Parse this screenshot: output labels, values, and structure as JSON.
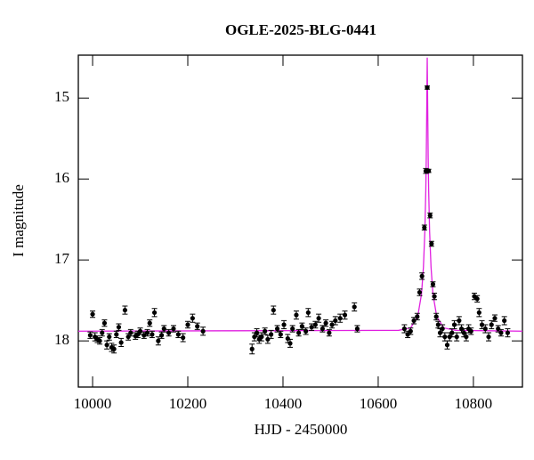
{
  "chart_data": {
    "type": "scatter",
    "title": "OGLE-2025-BLG-0441",
    "xlabel": "HJD - 2450000",
    "ylabel": "I magnitude",
    "xlim": [
      9970,
      10903
    ],
    "xticks": [
      10000,
      10200,
      10400,
      10600,
      10800
    ],
    "ylim": [
      14.47,
      18.57
    ],
    "yticks": [
      15,
      16,
      17,
      18
    ],
    "y_inverted": true,
    "points": {
      "color": "#000000",
      "x": [
        9995,
        10000,
        10005,
        10010,
        10015,
        10020,
        10025,
        10030,
        10035,
        10040,
        10045,
        10050,
        10055,
        10060,
        10068,
        10075,
        10080,
        10090,
        10095,
        10100,
        10108,
        10115,
        10120,
        10125,
        10130,
        10138,
        10145,
        10150,
        10160,
        10170,
        10180,
        10190,
        10200,
        10210,
        10220,
        10232,
        10335,
        10340,
        10345,
        10350,
        10355,
        10362,
        10368,
        10375,
        10380,
        10388,
        10395,
        10402,
        10410,
        10415,
        10420,
        10428,
        10433,
        10440,
        10448,
        10453,
        10460,
        10468,
        10475,
        10483,
        10490,
        10497,
        10503,
        10510,
        10520,
        10530,
        10550,
        10556,
        10655,
        10662,
        10668,
        10675,
        10682,
        10687,
        10692,
        10697,
        10700,
        10703,
        10706,
        10709,
        10712,
        10715,
        10718,
        10722,
        10726,
        10730,
        10735,
        10740,
        10745,
        10750,
        10755,
        10760,
        10765,
        10770,
        10775,
        10780,
        10785,
        10790,
        10795,
        10802,
        10808,
        10812,
        10818,
        10825,
        10832,
        10838,
        10845,
        10852,
        10858,
        10865,
        10872
      ],
      "values": [
        17.93,
        17.67,
        17.95,
        17.98,
        18.0,
        17.9,
        17.78,
        18.05,
        17.95,
        18.08,
        18.1,
        17.92,
        17.83,
        18.02,
        17.62,
        17.95,
        17.9,
        17.94,
        17.92,
        17.88,
        17.93,
        17.9,
        17.78,
        17.92,
        17.65,
        18.0,
        17.93,
        17.85,
        17.9,
        17.85,
        17.92,
        17.96,
        17.8,
        17.72,
        17.82,
        17.88,
        18.1,
        17.95,
        17.9,
        17.98,
        17.95,
        17.88,
        17.98,
        17.92,
        17.62,
        17.85,
        17.92,
        17.8,
        17.97,
        18.03,
        17.85,
        17.68,
        17.9,
        17.82,
        17.88,
        17.65,
        17.83,
        17.8,
        17.72,
        17.85,
        17.78,
        17.9,
        17.8,
        17.75,
        17.72,
        17.68,
        17.58,
        17.85,
        17.85,
        17.92,
        17.88,
        17.75,
        17.7,
        17.4,
        17.2,
        16.6,
        15.9,
        14.87,
        15.9,
        16.45,
        16.8,
        17.3,
        17.45,
        17.7,
        17.8,
        17.9,
        17.85,
        17.95,
        18.05,
        17.95,
        17.9,
        17.8,
        17.95,
        17.75,
        17.85,
        17.9,
        17.95,
        17.85,
        17.88,
        17.45,
        17.48,
        17.65,
        17.8,
        17.85,
        17.95,
        17.8,
        17.72,
        17.85,
        17.9,
        17.75,
        17.9
      ],
      "errors": [
        0.04,
        0.04,
        0.05,
        0.04,
        0.04,
        0.04,
        0.04,
        0.05,
        0.04,
        0.05,
        0.05,
        0.04,
        0.04,
        0.05,
        0.05,
        0.04,
        0.04,
        0.04,
        0.04,
        0.04,
        0.04,
        0.04,
        0.04,
        0.04,
        0.05,
        0.05,
        0.04,
        0.04,
        0.04,
        0.04,
        0.04,
        0.05,
        0.04,
        0.05,
        0.04,
        0.05,
        0.06,
        0.05,
        0.05,
        0.05,
        0.05,
        0.04,
        0.05,
        0.05,
        0.05,
        0.04,
        0.04,
        0.05,
        0.05,
        0.05,
        0.04,
        0.05,
        0.04,
        0.04,
        0.04,
        0.05,
        0.04,
        0.04,
        0.05,
        0.04,
        0.04,
        0.04,
        0.04,
        0.05,
        0.05,
        0.05,
        0.05,
        0.04,
        0.05,
        0.04,
        0.04,
        0.04,
        0.04,
        0.04,
        0.04,
        0.03,
        0.03,
        0.02,
        0.02,
        0.03,
        0.03,
        0.03,
        0.04,
        0.04,
        0.04,
        0.05,
        0.05,
        0.05,
        0.05,
        0.05,
        0.05,
        0.05,
        0.05,
        0.05,
        0.05,
        0.05,
        0.05,
        0.05,
        0.04,
        0.04,
        0.04,
        0.05,
        0.05,
        0.05,
        0.05,
        0.05,
        0.04,
        0.04,
        0.04,
        0.05,
        0.05
      ]
    },
    "model": {
      "color": "#e020e0",
      "x": [
        9970,
        10643,
        10668,
        10683,
        10691,
        10695,
        10698,
        10700,
        10701,
        10702,
        10703,
        10704,
        10705,
        10706,
        10708,
        10711,
        10715,
        10723,
        10738,
        10763,
        10903
      ],
      "values": [
        17.88,
        17.87,
        17.84,
        17.7,
        17.42,
        17.09,
        16.65,
        16.14,
        15.74,
        15.14,
        14.5,
        15.14,
        15.74,
        16.14,
        16.65,
        17.09,
        17.42,
        17.7,
        17.84,
        17.87,
        17.88
      ]
    }
  }
}
